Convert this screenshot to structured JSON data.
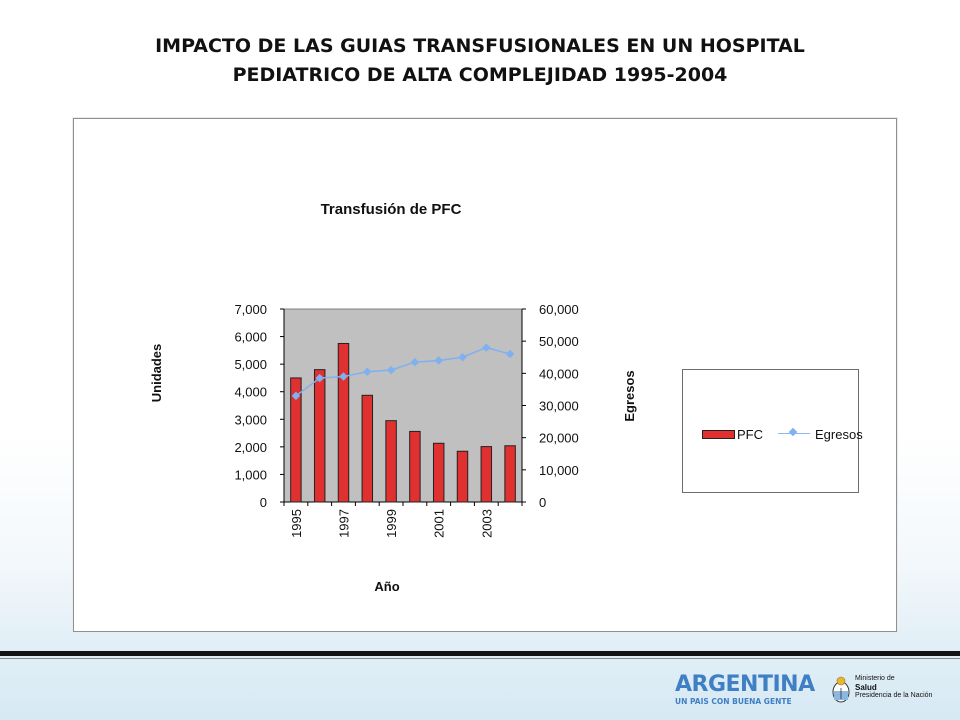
{
  "slide": {
    "title_line1": "IMPACTO DE LAS GUIAS TRANSFUSIONALES EN UN HOSPITAL",
    "title_line2": "PEDIATRICO DE ALTA COMPLEJIDAD 1995-2004"
  },
  "chart_data": {
    "type": "bar",
    "title": "Transfusión de PFC",
    "xlabel": "Año",
    "ylabel": "Unidades",
    "y2label": "Egresos",
    "categories": [
      "1995",
      "1996",
      "1997",
      "1998",
      "1999",
      "2000",
      "2001",
      "2002",
      "2003",
      "2004"
    ],
    "x_tick_labels": [
      "1995",
      "1997",
      "1999",
      "2001",
      "2003"
    ],
    "ylim": [
      0,
      7000
    ],
    "y_ticks": [
      "0",
      "1,000",
      "2,000",
      "3,000",
      "4,000",
      "5,000",
      "6,000",
      "7,000"
    ],
    "y2lim": [
      0,
      60000
    ],
    "y2_ticks": [
      "0",
      "10,000",
      "20,000",
      "30,000",
      "40,000",
      "50,000",
      "60,000"
    ],
    "plot_background": "#c0c0c0",
    "series": [
      {
        "name": "PFC",
        "type": "bar",
        "axis": "left",
        "color": "#e03030",
        "values": [
          4500,
          4800,
          5750,
          3870,
          2950,
          2560,
          2130,
          1840,
          2010,
          2040
        ]
      },
      {
        "name": "Egresos",
        "type": "line",
        "axis": "right",
        "color": "#7fb0f0",
        "values": [
          33000,
          38500,
          39000,
          40500,
          41000,
          43500,
          44000,
          45000,
          48000,
          46000
        ]
      }
    ],
    "legend_position": "right",
    "grid": false
  },
  "footer": {
    "brand": "ARGENTINA",
    "tagline": "UN PAIS CON BUENA GENTE",
    "ministry_line1": "Ministerio de",
    "ministry_line2": "Salud",
    "ministry_line3": "Presidencia de la Nación",
    "brand_color": "#3f7fc4"
  }
}
